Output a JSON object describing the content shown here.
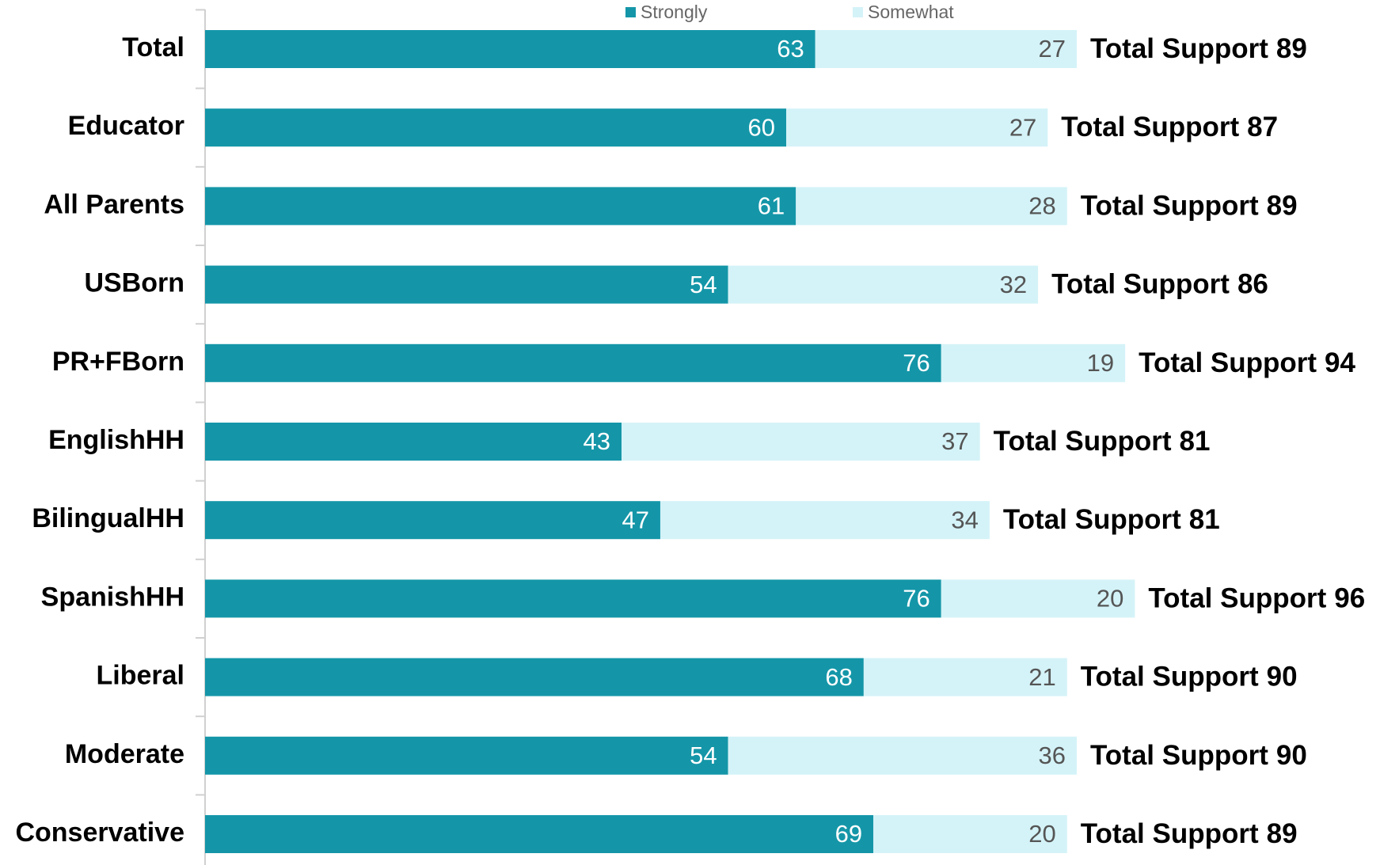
{
  "chart_data": {
    "type": "stacked-bar-horizontal",
    "categories": [
      "Total",
      "Educator",
      "All Parents",
      "USBorn",
      "PR+FBorn",
      "EnglishHH",
      "BilingualHH",
      "SpanishHH",
      "Liberal",
      "Moderate",
      "Conservative"
    ],
    "series": [
      {
        "name": "Strongly",
        "color": "#1496a8",
        "values": [
          63,
          60,
          61,
          54,
          76,
          43,
          47,
          76,
          68,
          54,
          69
        ]
      },
      {
        "name": "Somewhat",
        "color": "#d4f3f8",
        "values": [
          27,
          27,
          28,
          32,
          19,
          37,
          34,
          20,
          21,
          36,
          20
        ]
      }
    ],
    "totals": {
      "name": "Total Support",
      "values": [
        89,
        87,
        89,
        86,
        94,
        81,
        81,
        96,
        90,
        90,
        89
      ]
    },
    "xlim": [
      0,
      120
    ],
    "legend": "top"
  }
}
